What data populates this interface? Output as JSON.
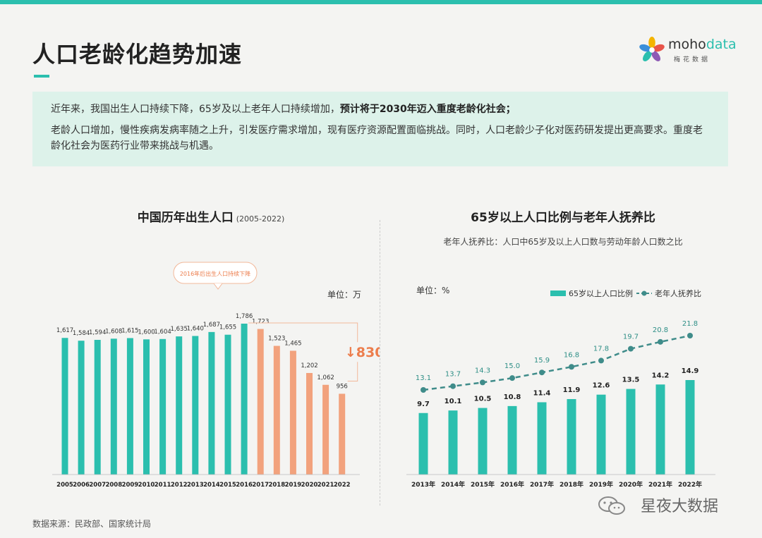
{
  "header": {
    "title": "人口老龄化趋势加速",
    "logo_name_a": "moho",
    "logo_name_b": "data",
    "logo_sub": "梅花数据"
  },
  "summary": {
    "line1_plain": "近年来，我国出生人口持续下降，65岁及以上老年人口持续增加，",
    "line1_bold": "预计将于2030年迈入重度老龄化社会；",
    "line2": "老龄人口增加，慢性疾病发病率随之上升，引发医疗需求增加，现有医疗资源配置面临挑战。同时，人口老龄少子化对医药研发提出更高要求。重度老龄化社会为医药行业带来挑战与机遇。"
  },
  "colors": {
    "accent": "#2bbfae",
    "decline": "#f2a27d",
    "decline_text": "#ec7d4c",
    "line": "#3f8c8a"
  },
  "source": "数据来源：民政部、国家统计局",
  "watermark": "星夜大数据",
  "chart_data": [
    {
      "type": "bar",
      "title": "中国历年出生人口",
      "title_note": "(2005-2022)",
      "unit_label": "单位：万",
      "callout": "2016年后出生人口持续下降",
      "decline_label": "830",
      "categories": [
        "2005",
        "2006",
        "2007",
        "2008",
        "2009",
        "2010",
        "2011",
        "2012",
        "2013",
        "2014",
        "2015",
        "2016",
        "2017",
        "2018",
        "2019",
        "2020",
        "2021",
        "2022"
      ],
      "values": [
        1617,
        1584,
        1594,
        1608,
        1615,
        1600,
        1604,
        1635,
        1640,
        1687,
        1655,
        1786,
        1723,
        1523,
        1465,
        1202,
        1062,
        956
      ],
      "value_labels": [
        "1,617",
        "1,584",
        "1,594",
        "1,608",
        "1,615",
        "1,600",
        "1,604",
        "1,635",
        "1,640",
        "1,687",
        "1,655",
        "1,786",
        "1,723",
        "1,523",
        "1,465",
        "1,202",
        "1,062",
        "956"
      ],
      "highlight_from": "2017"
    },
    {
      "type": "bar+line",
      "title": "65岁以上人口比例与老年人抚养比",
      "subtitle": "老年人抚养比：人口中65岁及以上人口数与劳动年龄人口数之比",
      "unit_label": "单位：%",
      "categories": [
        "2013年",
        "2014年",
        "2015年",
        "2016年",
        "2017年",
        "2018年",
        "2019年",
        "2020年",
        "2021年",
        "2022年"
      ],
      "series": [
        {
          "name": "65岁以上人口比例",
          "type": "bar",
          "values": [
            9.7,
            10.1,
            10.5,
            10.8,
            11.4,
            11.9,
            12.6,
            13.5,
            14.2,
            14.9
          ]
        },
        {
          "name": "老年人抚养比",
          "type": "line",
          "values": [
            13.1,
            13.7,
            14.3,
            15.0,
            15.9,
            16.8,
            17.8,
            19.7,
            20.8,
            21.8
          ]
        }
      ]
    }
  ]
}
